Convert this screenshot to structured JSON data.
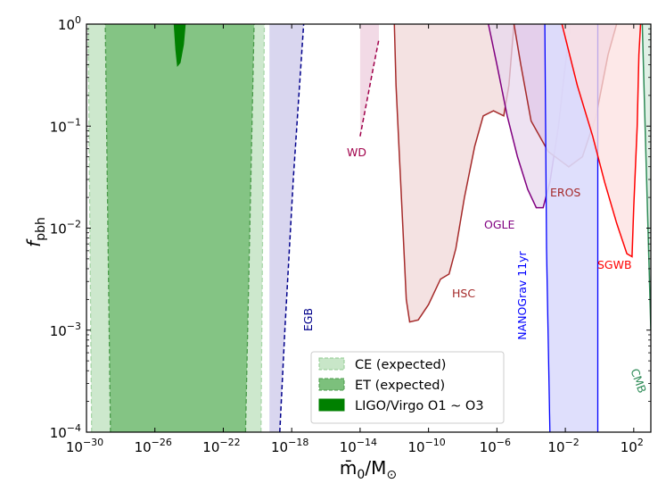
{
  "chart_data": {
    "type": "area",
    "xscale": "log",
    "yscale": "log",
    "xlim_exp": [
      -30,
      3
    ],
    "ylim_exp": [
      -4,
      0
    ],
    "xlabel": "m̄0/M⊙",
    "ylabel": "fpbh",
    "x_tick_exponents": [
      -30,
      -26,
      -22,
      -18,
      -14,
      -10,
      -6,
      -2,
      2
    ],
    "y_tick_exponents": [
      -4,
      -3,
      -2,
      -1,
      0
    ],
    "x_ticks": [
      "10−30",
      "10−26",
      "10−22",
      "10−18",
      "10−14",
      "10−10",
      "10−6",
      "10−2",
      "102"
    ],
    "y_ticks": [
      "10−4",
      "10−3",
      "10−2",
      "10−1",
      "100"
    ],
    "legend": [
      {
        "label": "CE (expected)",
        "color": "#c8e6c8",
        "edge": "#90c990"
      },
      {
        "label": "ET (expected)",
        "color": "#7cc07c",
        "edge": "#4a9a4a"
      },
      {
        "label": "LIGO/Virgo O1 ~ O3",
        "color": "#008000",
        "edge": "#008000"
      }
    ],
    "series": [
      {
        "name": "CE (expected)",
        "kind": "band",
        "color": "#c8e6c8",
        "edge": "#a8d6a8",
        "lower_left": [
          [
            -29.7,
            -4
          ],
          [
            -29.9,
            0
          ]
        ],
        "lower_right": [
          [
            -19.8,
            -4
          ],
          [
            -19.6,
            0
          ]
        ]
      },
      {
        "name": "ET (expected)",
        "kind": "band",
        "color": "#7cc07c",
        "edge": "#4a9a4a",
        "lower_left": [
          [
            -28.6,
            -4
          ],
          [
            -28.9,
            0
          ]
        ],
        "lower_right": [
          [
            -20.7,
            -4
          ],
          [
            -20.2,
            0
          ]
        ]
      },
      {
        "name": "LIGO/Virgo O1 ~ O3",
        "kind": "polygon",
        "color": "#008000",
        "points": [
          [
            -24.9,
            0
          ],
          [
            -24.8,
            -0.25
          ],
          [
            -24.7,
            -0.42
          ],
          [
            -24.5,
            -0.38
          ],
          [
            -24.3,
            -0.2
          ],
          [
            -24.2,
            0
          ]
        ]
      },
      {
        "name": "EGB",
        "kind": "dashed-boundary",
        "color": "#00008b",
        "fill": "#d9d6ef",
        "points": [
          [
            -18.7,
            -4
          ],
          [
            -18.4,
            -3
          ],
          [
            -17.9,
            -1.5
          ],
          [
            -17.3,
            0
          ]
        ],
        "left_edge": -19.3
      },
      {
        "name": "WD",
        "kind": "dashed-boundary",
        "color": "#a0004a",
        "fill": "#f2dae6",
        "points": [
          [
            -14.0,
            -1.1
          ],
          [
            -13.6,
            -0.75
          ],
          [
            -13.2,
            -0.4
          ],
          [
            -12.9,
            -0.15
          ]
        ],
        "left_edge": -14.0
      },
      {
        "name": "HSC",
        "kind": "curve",
        "color": "#a52a2a",
        "fill": "#f0d8d8",
        "points": [
          [
            -12.0,
            0
          ],
          [
            -11.9,
            -0.6
          ],
          [
            -11.7,
            -1.3
          ],
          [
            -11.5,
            -2.0
          ],
          [
            -11.3,
            -2.7
          ],
          [
            -11.1,
            -2.92
          ],
          [
            -10.6,
            -2.9
          ],
          [
            -10.0,
            -2.75
          ],
          [
            -9.3,
            -2.5
          ],
          [
            -8.8,
            -2.45
          ],
          [
            -8.4,
            -2.2
          ],
          [
            -7.9,
            -1.7
          ],
          [
            -7.3,
            -1.2
          ],
          [
            -6.8,
            -0.9
          ],
          [
            -6.2,
            -0.85
          ],
          [
            -5.6,
            -0.9
          ],
          [
            -5.3,
            -0.6
          ],
          [
            -5.0,
            0
          ]
        ]
      },
      {
        "name": "OGLE",
        "kind": "curve",
        "color": "#800080",
        "fill": "#e8d8ee",
        "points": [
          [
            -6.5,
            0
          ],
          [
            -6.0,
            -0.4
          ],
          [
            -5.4,
            -0.9
          ],
          [
            -4.8,
            -1.3
          ],
          [
            -4.2,
            -1.62
          ],
          [
            -3.7,
            -1.8
          ],
          [
            -3.3,
            -1.8
          ],
          [
            -2.9,
            -1.55
          ],
          [
            -2.4,
            -1.0
          ],
          [
            -2.0,
            -0.4
          ],
          [
            -1.7,
            0
          ]
        ]
      },
      {
        "name": "EROS",
        "kind": "curve",
        "color": "#a52a2a",
        "fill": "#e0c8e8",
        "points": [
          [
            -5.0,
            0
          ],
          [
            -4.6,
            -0.4
          ],
          [
            -4.0,
            -0.95
          ],
          [
            -3.0,
            -1.25
          ],
          [
            -1.8,
            -1.4
          ],
          [
            -1.0,
            -1.3
          ],
          [
            -0.2,
            -0.9
          ],
          [
            0.5,
            -0.3
          ],
          [
            1.0,
            0
          ]
        ]
      },
      {
        "name": "NANOGrav 11yr",
        "kind": "band",
        "color": "#dcdcfc",
        "edge": "#0000ff",
        "lower_left": [
          [
            -2.9,
            -4
          ],
          [
            -3.1,
            -2.2
          ],
          [
            -3.2,
            0
          ]
        ],
        "lower_right": [
          [
            -0.1,
            -4
          ],
          [
            -0.1,
            0
          ]
        ]
      },
      {
        "name": "SGWB",
        "kind": "curve",
        "color": "#ff0000",
        "fill": "#fce0e0",
        "points": [
          [
            -2.2,
            0
          ],
          [
            -1.3,
            -0.6
          ],
          [
            -0.4,
            -1.1
          ],
          [
            0.3,
            -1.55
          ],
          [
            1.0,
            -1.95
          ],
          [
            1.6,
            -2.25
          ],
          [
            1.9,
            -2.28
          ],
          [
            2.0,
            -1.8
          ],
          [
            2.2,
            -1.0
          ],
          [
            2.3,
            -0.3
          ],
          [
            2.4,
            0
          ]
        ]
      },
      {
        "name": "CMB",
        "kind": "boundary",
        "color": "#2e8b57",
        "fill": "#e0f0e6",
        "points": [
          [
            2.5,
            0
          ],
          [
            2.7,
            -1.2
          ],
          [
            2.9,
            -2.4
          ],
          [
            3.0,
            -3.0
          ]
        ]
      }
    ],
    "annotations": [
      {
        "text": "WD",
        "color": "#a0004a"
      },
      {
        "text": "HSC",
        "color": "#a52a2a"
      },
      {
        "text": "OGLE",
        "color": "#800080"
      },
      {
        "text": "EROS",
        "color": "#a52a2a"
      },
      {
        "text": "SGWB",
        "color": "#ff0000"
      },
      {
        "text": "EGB",
        "color": "#00008b"
      },
      {
        "text": "NANOGrav 11yr",
        "color": "#0000ff"
      },
      {
        "text": "CMB",
        "color": "#2e8b57"
      }
    ]
  }
}
